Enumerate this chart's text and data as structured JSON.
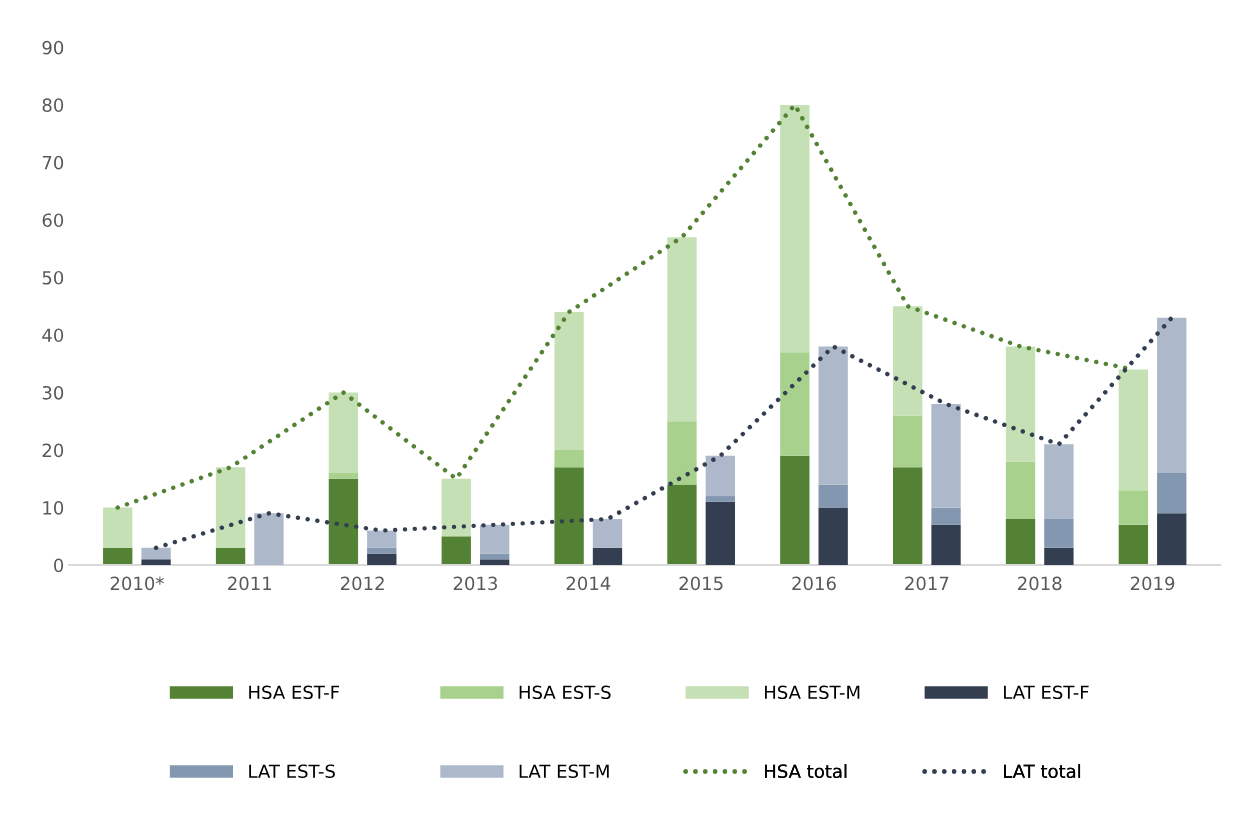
{
  "chart_data": [
    {
      "type": "bar",
      "stacked": true,
      "xlim": [
        2009.4,
        2019.6
      ],
      "xticks": [
        {
          "value": 2010,
          "label": "2010*"
        },
        2011,
        2012,
        2013,
        2014,
        2015,
        2016,
        2017,
        2018,
        2019
      ],
      "ylim": [
        0,
        90
      ],
      "yticks": [
        0,
        10,
        20,
        30,
        40,
        50,
        60,
        70,
        80,
        90
      ],
      "grid": false,
      "legend": "bottom",
      "line_style": "dotted",
      "marker": "none",
      "series": [
        {
          "name": "HSA EST-F",
          "color": "#548235",
          "x": [
            2009.83,
            2010.83,
            2011.83,
            2012.83,
            2013.83,
            2014.83,
            2015.83,
            2016.83,
            2017.83,
            2018.83
          ],
          "values": [
            3,
            3,
            15,
            5,
            17,
            14,
            19,
            17,
            8,
            7
          ]
        },
        {
          "name": "HSA EST-S",
          "color": "#a9d18e",
          "x": [
            2009.83,
            2010.83,
            2011.83,
            2012.83,
            2013.83,
            2014.83,
            2015.83,
            2016.83,
            2017.83,
            2018.83
          ],
          "values": [
            0,
            0,
            1,
            0,
            3,
            11,
            18,
            9,
            10,
            6
          ]
        },
        {
          "name": "HSA EST-M",
          "color": "#c5e0b4",
          "x": [
            2009.83,
            2010.83,
            2011.83,
            2012.83,
            2013.83,
            2014.83,
            2015.83,
            2016.83,
            2017.83,
            2018.83
          ],
          "values": [
            7,
            14,
            14,
            10,
            24,
            32,
            43,
            19,
            20,
            21
          ]
        },
        {
          "name": "HSA total",
          "type": "line",
          "color": "#548235",
          "x": [
            2009.83,
            2010.83,
            2011.83,
            2012.83,
            2013.83,
            2014.83,
            2015.83,
            2016.83,
            2017.83,
            2018.83
          ],
          "values": [
            10,
            17,
            30,
            15,
            44,
            57,
            80,
            45,
            38,
            34
          ]
        }
      ]
    },
    {
      "type": "bar",
      "stacked": true,
      "tick_labels": false,
      "xlim": [
        2009.4,
        2019.6
      ],
      "xticks": [
        2010,
        2011,
        2012,
        2013,
        2014,
        2015,
        2016,
        2017,
        2018,
        2019
      ],
      "ylim": [
        0,
        90
      ],
      "yticks": [
        0,
        10,
        20,
        30,
        40,
        50,
        60,
        70,
        80,
        90
      ],
      "grid": false,
      "legend": "bottom",
      "line_style": "dotted",
      "marker": "none",
      "series": [
        {
          "name": "LAT EST-F",
          "color": "#333f50",
          "x": [
            2010.17,
            2011.17,
            2012.17,
            2013.17,
            2014.17,
            2015.17,
            2016.17,
            2017.17,
            2018.17,
            2019.17
          ],
          "values": [
            1,
            0,
            2,
            1,
            3,
            11,
            10,
            7,
            3,
            9
          ]
        },
        {
          "name": "LAT EST-S",
          "color": "#8497b0",
          "x": [
            2010.17,
            2011.17,
            2012.17,
            2013.17,
            2014.17,
            2015.17,
            2016.17,
            2017.17,
            2018.17,
            2019.17
          ],
          "values": [
            0,
            0,
            1,
            1,
            0,
            1,
            4,
            3,
            5,
            7
          ]
        },
        {
          "name": "LAT EST-M",
          "color": "#adb9ca",
          "x": [
            2010.17,
            2011.17,
            2012.17,
            2013.17,
            2014.17,
            2015.17,
            2016.17,
            2017.17,
            2018.17,
            2019.17
          ],
          "values": [
            2,
            9,
            3,
            5,
            5,
            7,
            24,
            18,
            13,
            27
          ]
        },
        {
          "name": "LAT total",
          "type": "line",
          "color": "#333f50",
          "x": [
            2010.17,
            2011.17,
            2012.17,
            2013.17,
            2014.17,
            2015.17,
            2016.17,
            2017.17,
            2018.17,
            2019.17
          ],
          "values": [
            3,
            9,
            6,
            7,
            8,
            19,
            38,
            28,
            21,
            43
          ]
        }
      ]
    }
  ]
}
